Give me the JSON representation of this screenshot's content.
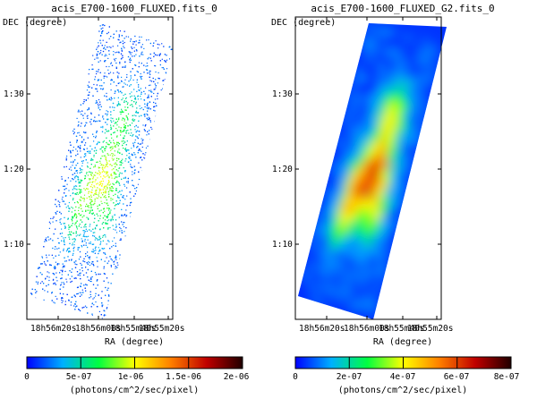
{
  "colors": {
    "frame": "#000000",
    "colormap": [
      "#0000ff",
      "#00b0ff",
      "#00ff40",
      "#ffff00",
      "#ff8000",
      "#c00000",
      "#200000"
    ]
  },
  "panels": [
    {
      "title": "acis_E700-1600_FLUXED.fits_0",
      "ylabel": "DEC (degree)",
      "xlabel": "RA (degree)",
      "yticks": [
        "1:30",
        "1:20",
        "1:10"
      ],
      "xticks": [
        "18h56m20s",
        "18h56m00s",
        "18h55m40s",
        "18h55m20s"
      ],
      "colorbar_ticks": [
        "0",
        "5e-07",
        "1e-06",
        "1.5e-06",
        "2e-06"
      ],
      "colorbar_label": "(photons/cm^2/sec/pixel)",
      "style": "sparse"
    },
    {
      "title": "acis_E700-1600_FLUXED_G2.fits_0",
      "ylabel": "DEC (degree)",
      "xlabel": "RA (degree)",
      "yticks": [
        "1:30",
        "1:20",
        "1:10"
      ],
      "xticks": [
        "18h56m20s",
        "18h56m00s",
        "18h55m40s",
        "18h55m20s"
      ],
      "colorbar_ticks": [
        "0",
        "2e-07",
        "4e-07",
        "6e-07",
        "8e-07"
      ],
      "colorbar_label": "(photons/cm^2/sec/pixel)",
      "style": "smooth"
    }
  ]
}
